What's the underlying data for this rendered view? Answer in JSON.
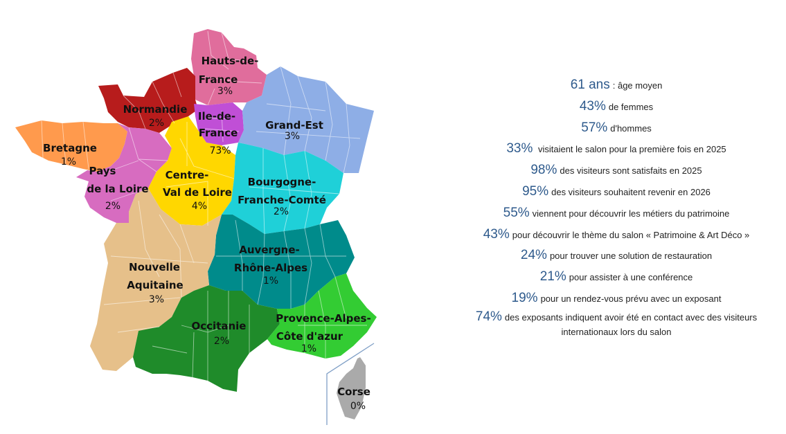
{
  "map": {
    "colors": {
      "hauts_de_france": "#e06d9c",
      "normandie": "#b71c1c",
      "ile_de_france": "#c04fd6",
      "grand_est": "#8eaee6",
      "bretagne": "#ff9a4d",
      "pays_de_la_loire": "#d76cc0",
      "centre_val_de_loire": "#ffd700",
      "bourgogne_franche_comte": "#1fd0d8",
      "auvergne_rhone_alpes": "#008b8b",
      "nouvelle_aquitaine": "#e6c08a",
      "occitanie": "#1f8b2a",
      "provence_alpes_cote_azur": "#33cc33",
      "corse": "#aaaaaa",
      "inset_frame": "#7f9fc6"
    },
    "regions": [
      {
        "id": "hauts_de_france",
        "name_lines": [
          "Hauts-de-",
          "France"
        ],
        "value": "3%"
      },
      {
        "id": "normandie",
        "name_lines": [
          "Normandie"
        ],
        "value": "2%"
      },
      {
        "id": "ile_de_france",
        "name_lines": [
          "Ile-de-",
          "France"
        ],
        "value": "73%"
      },
      {
        "id": "grand_est",
        "name_lines": [
          "Grand-Est"
        ],
        "value": "3%"
      },
      {
        "id": "bretagne",
        "name_lines": [
          "Bretagne"
        ],
        "value": "1%"
      },
      {
        "id": "pays_de_la_loire",
        "name_lines": [
          "Pays",
          "de la Loire"
        ],
        "value": "2%"
      },
      {
        "id": "centre_val_de_loire",
        "name_lines": [
          "Centre-",
          "Val de Loire"
        ],
        "value": "4%"
      },
      {
        "id": "bourgogne_franche_comte",
        "name_lines": [
          "Bourgogne-",
          "Franche-Comté"
        ],
        "value": "2%"
      },
      {
        "id": "auvergne_rhone_alpes",
        "name_lines": [
          "Auvergne-",
          "Rhône-Alpes"
        ],
        "value": "1%"
      },
      {
        "id": "nouvelle_aquitaine",
        "name_lines": [
          "Nouvelle",
          "Aquitaine"
        ],
        "value": "3%"
      },
      {
        "id": "occitanie",
        "name_lines": [
          "Occitanie"
        ],
        "value": "2%"
      },
      {
        "id": "provence_alpes_cote_azur",
        "name_lines": [
          "Provence-Alpes-",
          "Côte d'azur"
        ],
        "value": "1%"
      },
      {
        "id": "corse",
        "name_lines": [
          "Corse"
        ],
        "value": "0%"
      }
    ]
  },
  "stats": [
    {
      "value": "61 ans",
      "text": ": âge moyen"
    },
    {
      "value": "43%",
      "text": "de femmes"
    },
    {
      "value": "57%",
      "text": "d'hommes"
    },
    {
      "value": "33%",
      "text": " visitaient le salon pour la première fois en 2025"
    },
    {
      "value": "98%",
      "text": "des visiteurs sont satisfaits en 2025"
    },
    {
      "value": "95%",
      "text": "des visiteurs souhaitent revenir en 2026"
    },
    {
      "value": "55%",
      "text": "viennent pour découvrir les métiers du patrimoine"
    },
    {
      "value": "43%",
      "text": "pour découvrir le thème du salon « Patrimoine & Art Déco »"
    },
    {
      "value": "24%",
      "text": "pour trouver une solution de restauration"
    },
    {
      "value": "21%",
      "text": "pour assister à une conférence"
    },
    {
      "value": "19%",
      "text": "pour un rendez-vous prévu avec un exposant"
    },
    {
      "value": "74%",
      "text": "des exposants indiquent avoir été en contact avec des visiteurs",
      "text_line2": "internationaux lors du salon"
    }
  ]
}
